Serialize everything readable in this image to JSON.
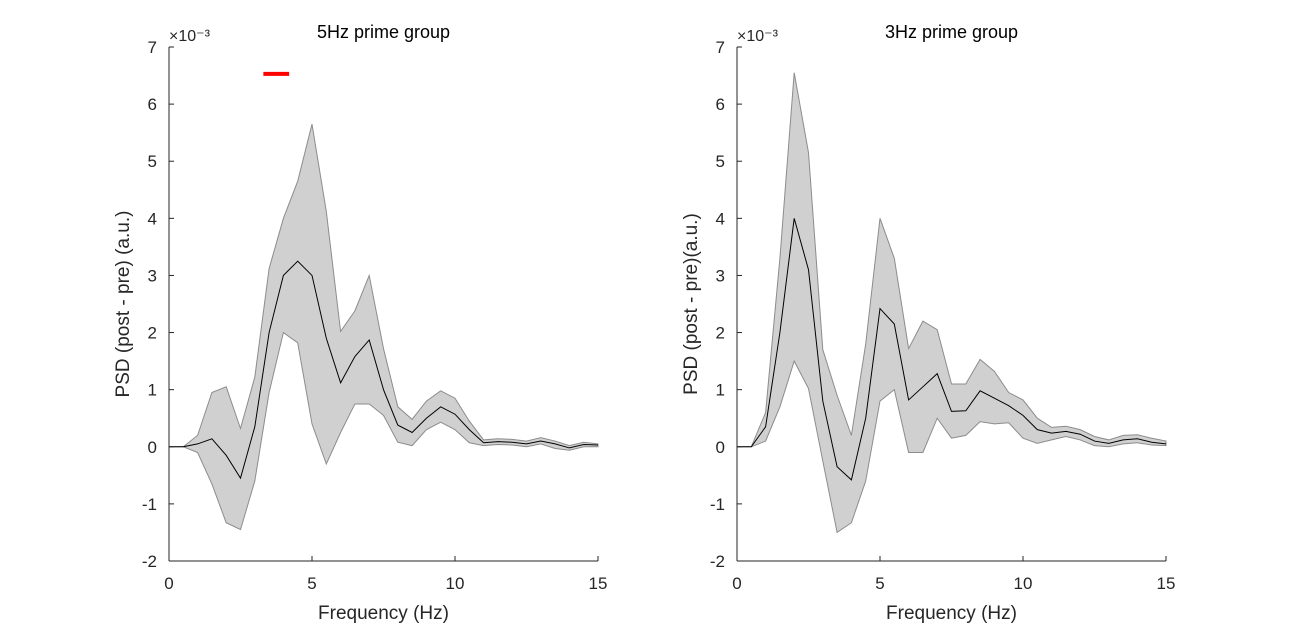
{
  "colors": {
    "band": "#d0d0d0",
    "band_edge": "#8c8c8c",
    "mean_line": "#000000",
    "axis": "#262626",
    "marker": "#ff0000"
  },
  "chart_data": [
    {
      "type": "line",
      "title": "5Hz prime group",
      "xlabel": "Frequency (Hz)",
      "ylabel": "PSD (post - pre) (a.u.)",
      "y_multiplier_label": "×10⁻³",
      "xlim": [
        0,
        15
      ],
      "ylim": [
        -2,
        7
      ],
      "xticks": [
        0,
        5,
        10,
        15
      ],
      "yticks": [
        -2,
        -1,
        0,
        1,
        2,
        3,
        4,
        5,
        6,
        7
      ],
      "grid": false,
      "series_style": "mean line with shaded error band",
      "x": [
        0,
        0.5,
        1,
        1.5,
        2,
        2.5,
        3,
        3.5,
        4,
        4.5,
        5,
        5.5,
        6,
        6.5,
        7,
        7.5,
        8,
        8.5,
        9,
        9.5,
        10,
        10.5,
        11,
        11.5,
        12,
        12.5,
        13,
        13.5,
        14,
        14.5,
        15
      ],
      "mean": [
        0,
        0,
        0.05,
        0.14,
        -0.15,
        -0.55,
        0.35,
        2.0,
        3.0,
        3.25,
        3.0,
        1.9,
        1.12,
        1.58,
        1.87,
        1.0,
        0.38,
        0.25,
        0.5,
        0.7,
        0.57,
        0.3,
        0.07,
        0.09,
        0.08,
        0.05,
        0.1,
        0.05,
        -0.02,
        0.04,
        0.03
      ],
      "upper": [
        0,
        0,
        0.2,
        0.95,
        1.05,
        0.32,
        1.22,
        3.12,
        4.0,
        4.65,
        5.65,
        4.12,
        2.02,
        2.38,
        3.0,
        1.72,
        0.7,
        0.48,
        0.8,
        0.98,
        0.85,
        0.45,
        0.12,
        0.14,
        0.13,
        0.1,
        0.16,
        0.1,
        0.02,
        0.08,
        0.05
      ],
      "lower": [
        0,
        0,
        -0.1,
        -0.65,
        -1.33,
        -1.45,
        -0.6,
        0.95,
        2.0,
        1.82,
        0.4,
        -0.3,
        0.25,
        0.75,
        0.75,
        0.55,
        0.08,
        0.02,
        0.3,
        0.43,
        0.3,
        0.07,
        0.02,
        0.04,
        0.03,
        0.0,
        0.05,
        -0.03,
        -0.06,
        0.0,
        0.0
      ],
      "annotation": {
        "type": "significance bar",
        "x": [
          3.3,
          4.2
        ],
        "y": 6.53
      }
    },
    {
      "type": "line",
      "title": "3Hz prime group",
      "xlabel": "Frequency (Hz)",
      "ylabel": "PSD (post - pre)(a.u.)",
      "y_multiplier_label": "×10⁻³",
      "xlim": [
        0,
        15
      ],
      "ylim": [
        -2,
        7
      ],
      "xticks": [
        0,
        5,
        10,
        15
      ],
      "yticks": [
        -2,
        -1,
        0,
        1,
        2,
        3,
        4,
        5,
        6,
        7
      ],
      "grid": false,
      "series_style": "mean line with shaded error band",
      "x": [
        0,
        0.5,
        1,
        1.5,
        2,
        2.5,
        3,
        3.5,
        4,
        4.5,
        5,
        5.5,
        6,
        6.5,
        7,
        7.5,
        8,
        8.5,
        9,
        9.5,
        10,
        10.5,
        11,
        11.5,
        12,
        12.5,
        13,
        13.5,
        14,
        14.5,
        15
      ],
      "mean": [
        0,
        0,
        0.35,
        2.0,
        4.0,
        3.1,
        0.8,
        -0.35,
        -0.58,
        0.5,
        2.42,
        2.15,
        0.82,
        1.05,
        1.28,
        0.62,
        0.63,
        0.98,
        0.85,
        0.72,
        0.55,
        0.3,
        0.24,
        0.27,
        0.22,
        0.1,
        0.06,
        0.12,
        0.14,
        0.08,
        0.05
      ],
      "upper": [
        0,
        0,
        0.6,
        3.3,
        6.55,
        5.15,
        1.7,
        0.9,
        0.2,
        1.8,
        4.0,
        3.3,
        1.72,
        2.2,
        2.05,
        1.1,
        1.1,
        1.53,
        1.32,
        0.95,
        0.82,
        0.5,
        0.34,
        0.36,
        0.3,
        0.18,
        0.12,
        0.2,
        0.21,
        0.15,
        0.1
      ],
      "lower": [
        0,
        0,
        0.1,
        0.7,
        1.5,
        1.02,
        -0.25,
        -1.5,
        -1.33,
        -0.6,
        0.8,
        1.0,
        -0.1,
        -0.1,
        0.5,
        0.15,
        0.2,
        0.44,
        0.4,
        0.42,
        0.15,
        0.06,
        0.12,
        0.18,
        0.12,
        0.02,
        0.0,
        0.05,
        0.07,
        0.03,
        0.02
      ]
    }
  ]
}
